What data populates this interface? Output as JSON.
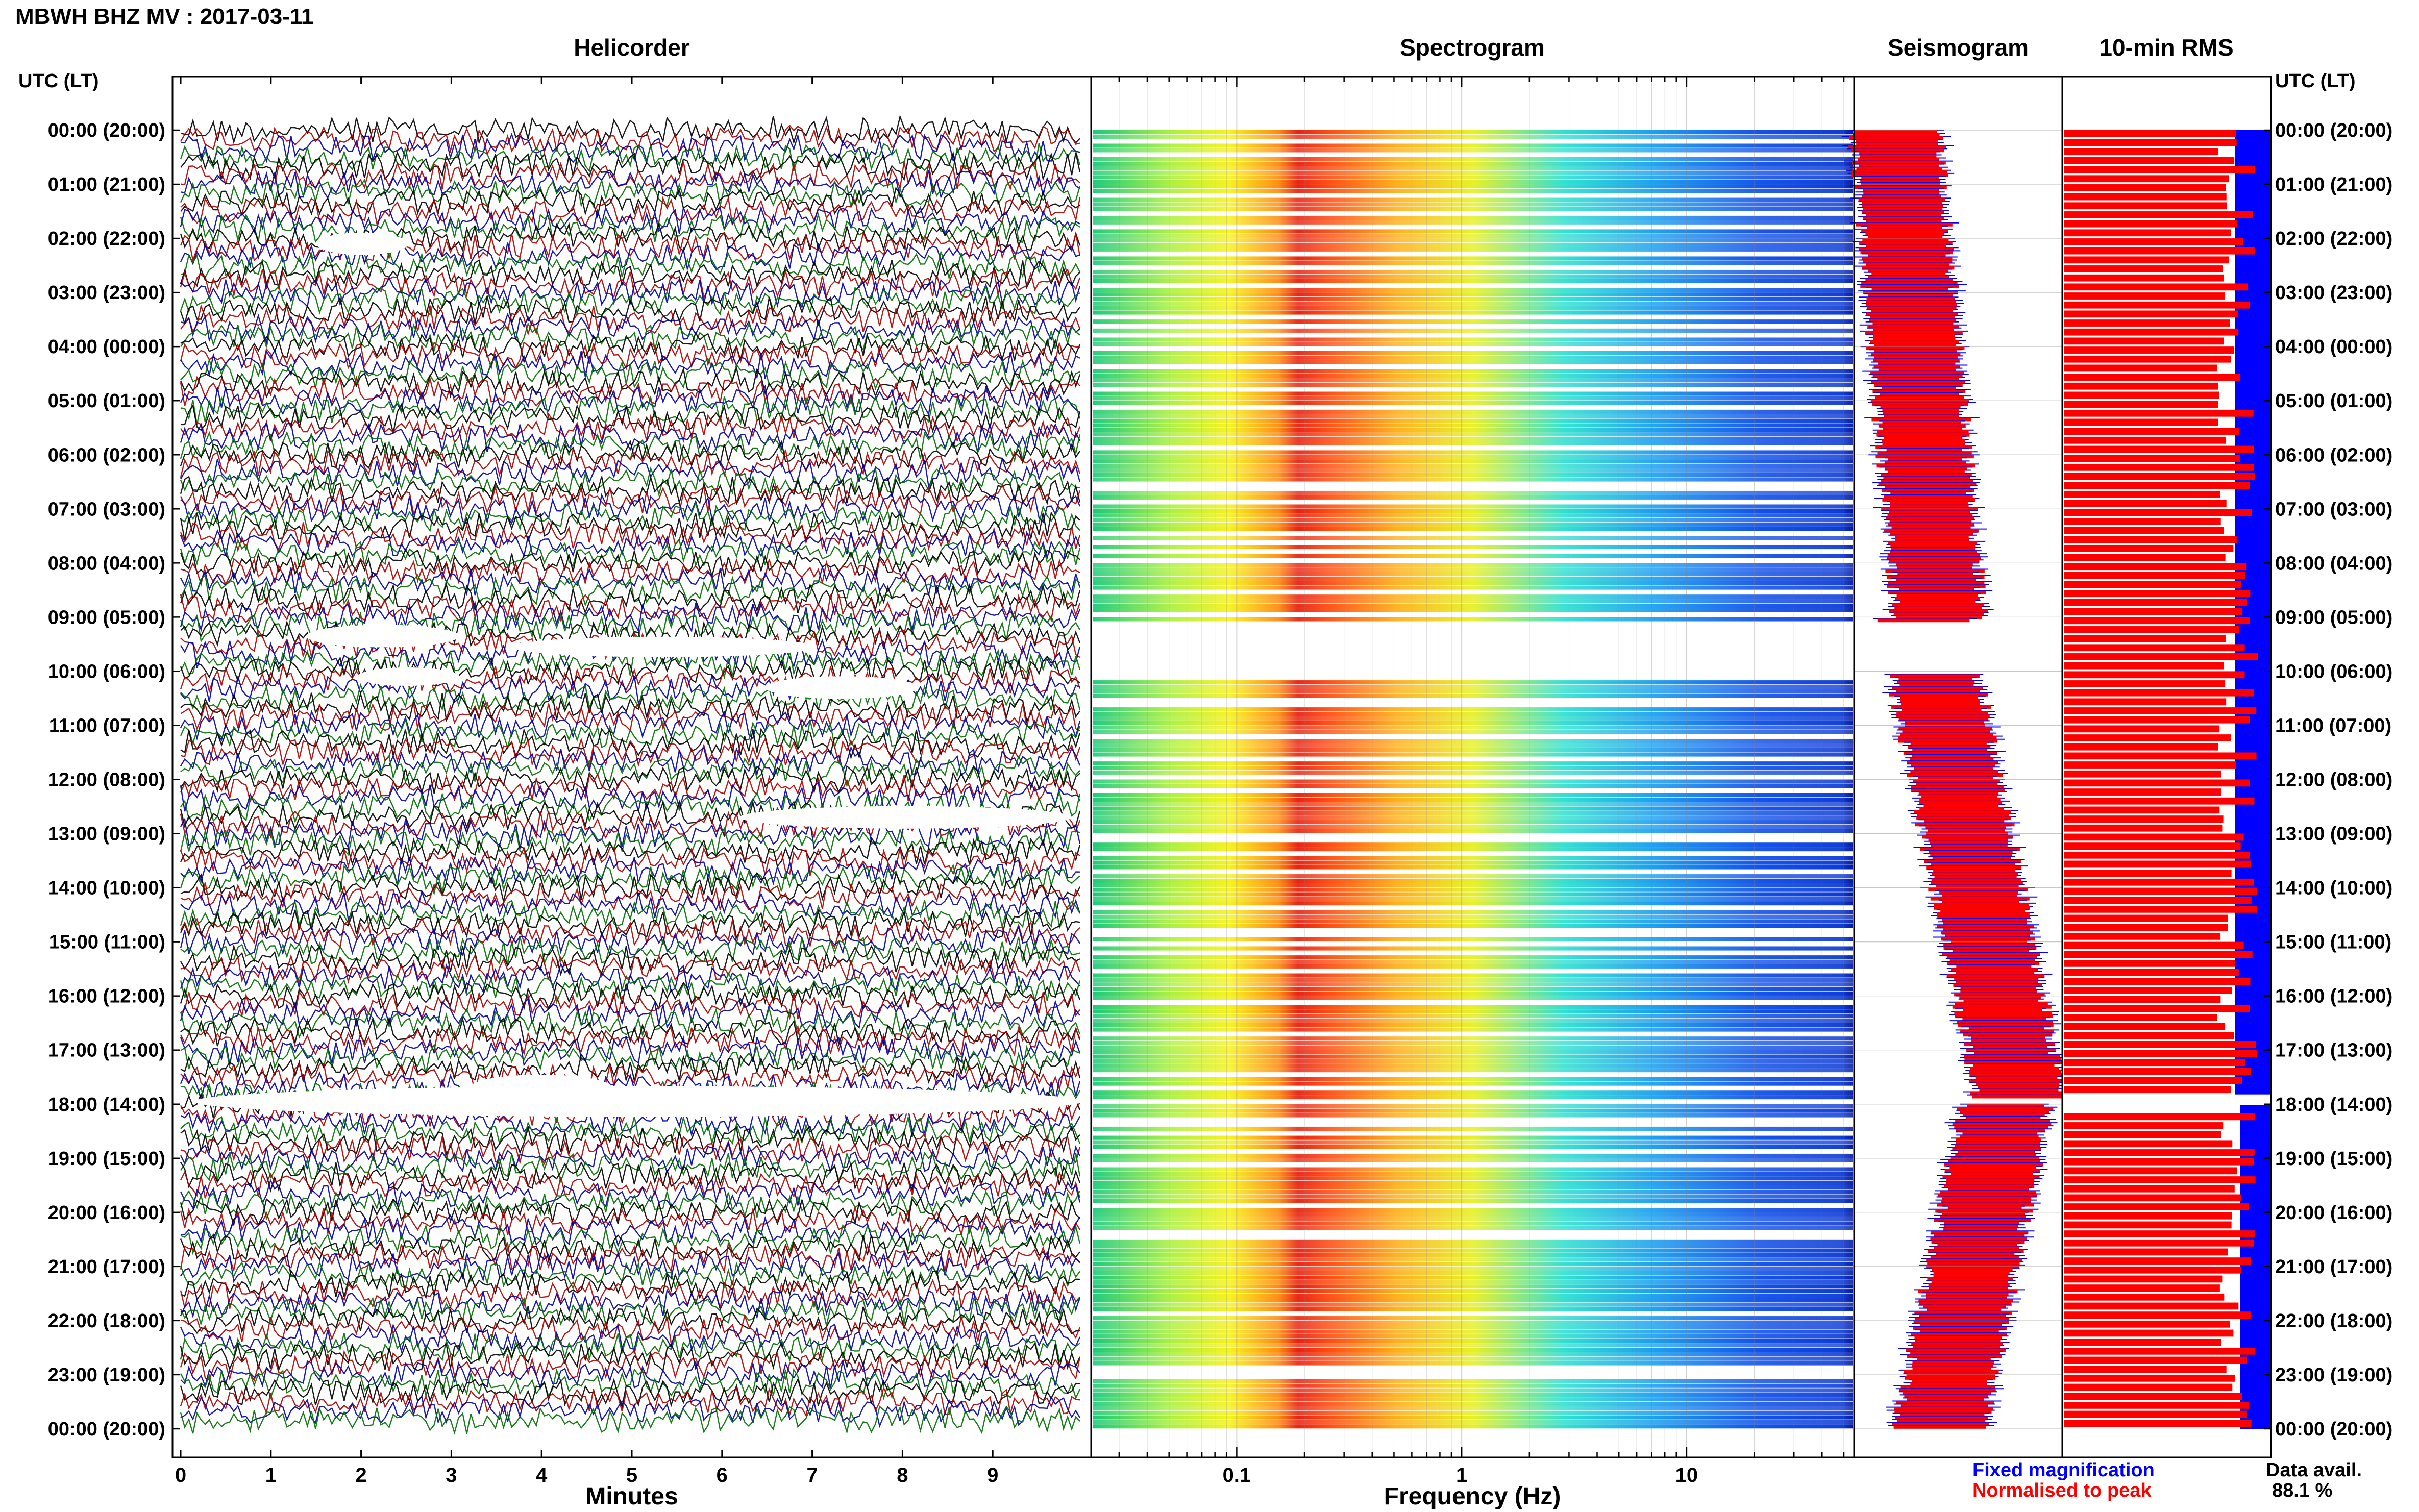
{
  "header": {
    "title": "MBWH BHZ MV : 2017-03-11",
    "utc_lt_label": "UTC (LT)"
  },
  "panels": {
    "helicorder": "Helicorder",
    "spectrogram": "Spectrogram",
    "seismogram": "Seismogram",
    "rms": "10-min RMS"
  },
  "axes": {
    "minutes_label": "Minutes",
    "frequency_label": "Frequency (Hz)"
  },
  "legend": {
    "fixed": "Fixed magnification",
    "normalised": "Normalised to peak",
    "data_avail_label": "Data avail.",
    "data_avail_value": "88.1 %"
  },
  "colors": {
    "fixed": "#0000ff",
    "normalised": "#ff0000",
    "trace_cycle": [
      "#000000",
      "#b00000",
      "#0000aa",
      "#007000"
    ]
  },
  "chart_data": [
    {
      "type": "helicorder",
      "panel": "Helicorder",
      "xlabel": "Minutes",
      "x_ticks": [
        0,
        1,
        2,
        3,
        4,
        5,
        6,
        7,
        8,
        9
      ],
      "xlim": [
        0,
        10
      ],
      "row_labels": [
        "00:00 (20:00)",
        "01:00 (21:00)",
        "02:00 (22:00)",
        "03:00 (23:00)",
        "04:00 (00:00)",
        "05:00 (01:00)",
        "06:00 (02:00)",
        "07:00 (03:00)",
        "08:00 (04:00)",
        "09:00 (05:00)",
        "10:00 (06:00)",
        "11:00 (07:00)",
        "12:00 (08:00)",
        "13:00 (09:00)",
        "14:00 (10:00)",
        "15:00 (11:00)",
        "16:00 (12:00)",
        "17:00 (13:00)",
        "18:00 (14:00)",
        "19:00 (15:00)",
        "20:00 (16:00)",
        "21:00 (17:00)",
        "22:00 (18:00)",
        "23:00 (19:00)",
        "00:00 (20:00)"
      ],
      "traces_per_hour": 6,
      "trace_minutes": 10
    },
    {
      "type": "heatmap",
      "panel": "Spectrogram",
      "xlabel": "Frequency (Hz)",
      "x_scale": "log",
      "x_ticks": [
        0.1,
        1,
        10
      ],
      "xlim": [
        0.025,
        50
      ],
      "dominant_band_hz": [
        0.17,
        0.6
      ],
      "colormap": "jet"
    },
    {
      "type": "area",
      "panel": "Seismogram",
      "series": [
        {
          "name": "Fixed magnification",
          "color": "#0000ff"
        },
        {
          "name": "Normalised to peak",
          "color": "#ff0000"
        }
      ]
    },
    {
      "type": "bar",
      "panel": "10-min RMS",
      "orientation": "horizontal",
      "series": [
        {
          "name": "Fixed magnification",
          "color": "#0000ff"
        },
        {
          "name": "Normalised to peak",
          "color": "#ff0000"
        }
      ]
    }
  ]
}
